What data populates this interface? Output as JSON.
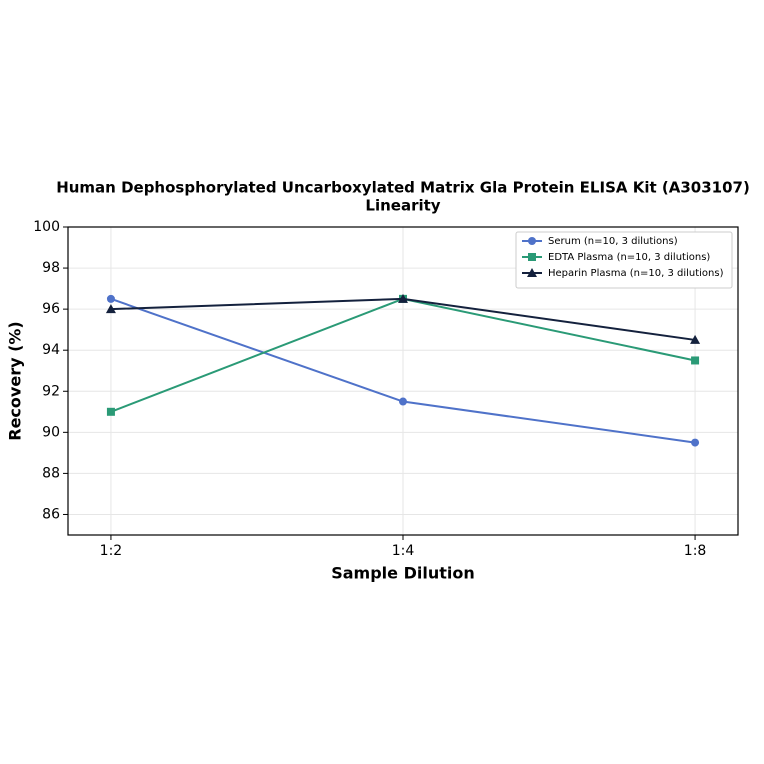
{
  "chart_data": {
    "type": "line",
    "title": "Human Dephosphorylated Uncarboxylated Matrix Gla Protein ELISA Kit (A303107)",
    "subtitle": "Linearity",
    "x_label": "Sample Dilution",
    "y_label": "Recovery (%)",
    "categories": [
      "1:2",
      "1:4",
      "1:8"
    ],
    "series": [
      {
        "name": "Serum (n=10, 3 dilutions)",
        "color": "#4f72c9",
        "marker": "circle",
        "values": [
          96.5,
          91.5,
          89.5
        ]
      },
      {
        "name": "EDTA Plasma (n=10, 3 dilutions)",
        "color": "#2a9a76",
        "marker": "square",
        "values": [
          91,
          96.5,
          93.5
        ]
      },
      {
        "name": "Heparin Plasma (n=10, 3 dilutions)",
        "color": "#14213d",
        "marker": "triangle",
        "values": [
          96,
          96.5,
          94.5
        ]
      }
    ],
    "ylim": [
      85,
      100
    ],
    "yticks": [
      86,
      88,
      90,
      92,
      94,
      96,
      98,
      100
    ],
    "grid": true,
    "legend": "upper-right"
  }
}
